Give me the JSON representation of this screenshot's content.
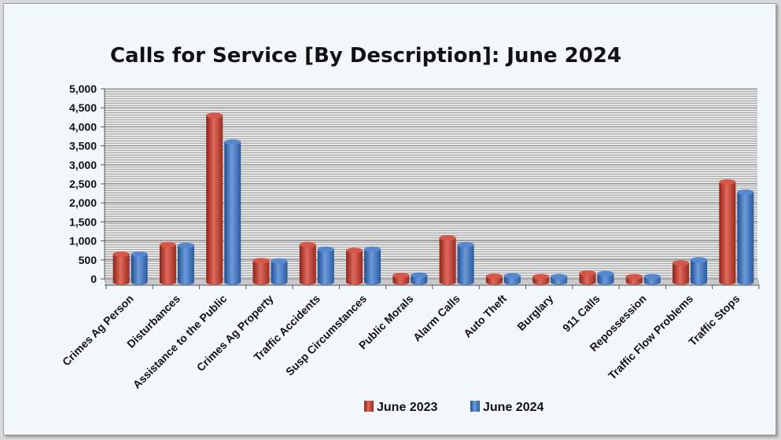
{
  "chart_data": {
    "type": "bar",
    "title": "Calls for Service [By Description]: June 2024",
    "xlabel": "",
    "ylabel": "",
    "ylim": [
      0,
      5000
    ],
    "yticks": [
      "0",
      "500",
      "1,000",
      "1,500",
      "2,000",
      "2,500",
      "3,000",
      "3,500",
      "4,000",
      "4,500",
      "5,000"
    ],
    "grid": true,
    "legend_position": "bottom",
    "categories": [
      "Crimes Ag Person",
      "Disturbances",
      "Assistance to the Public",
      "Crimes Ag Property",
      "Traffic Accidents",
      "Susp Circumstances",
      "Public Morals",
      "Alarm Calls",
      "Auto Theft",
      "Burglary",
      "911 Calls",
      "Repossession",
      "Traffic Flow Problems",
      "Traffic Stops"
    ],
    "series": [
      {
        "name": "June 2023",
        "color": "#c0392b",
        "values": [
          650,
          900,
          4300,
          480,
          900,
          750,
          90,
          1080,
          70,
          60,
          150,
          60,
          420,
          2550
        ]
      },
      {
        "name": "June 2024",
        "color": "#3a6fb8",
        "values": [
          650,
          880,
          3600,
          470,
          780,
          780,
          100,
          900,
          80,
          60,
          140,
          60,
          500,
          2280
        ]
      }
    ]
  }
}
